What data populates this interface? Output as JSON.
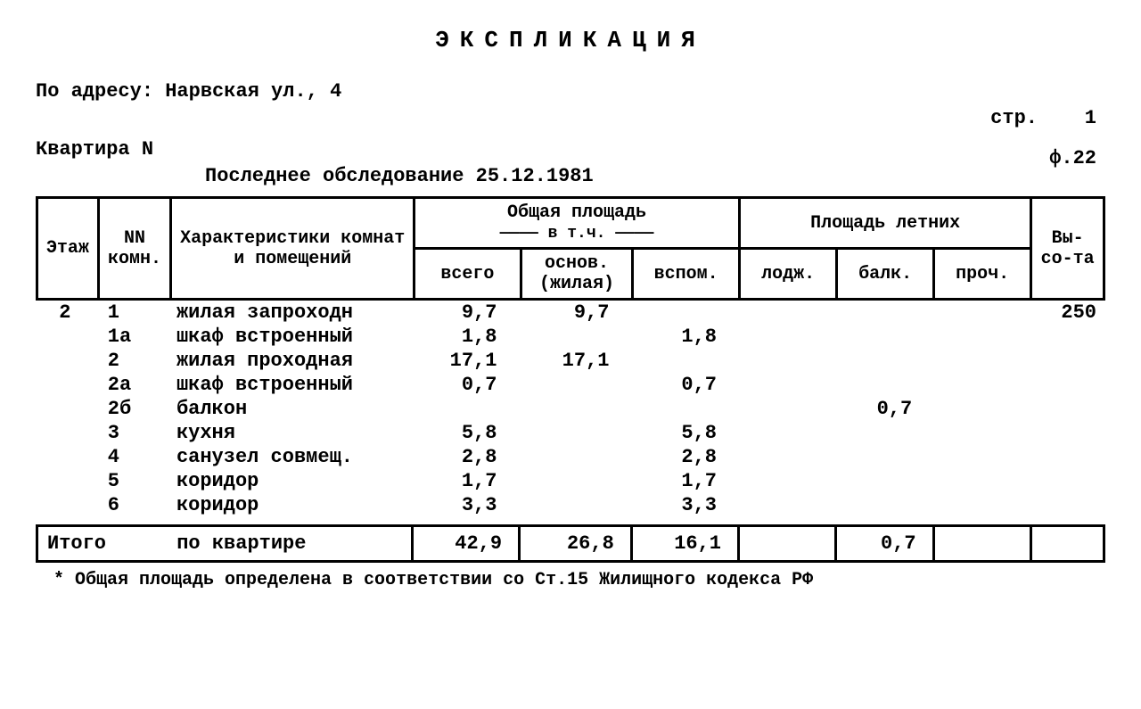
{
  "title": "ЭКСПЛИКАЦИЯ",
  "address_label": "По адресу:",
  "address_value": "Нарвская ул., 4",
  "page_label": "стр.",
  "page_value": "1",
  "apartment_label": "Квартира N",
  "form_label": "ф.22",
  "last_inspection_label": "Последнее обследование",
  "last_inspection_date": "25.12.1981",
  "headers": {
    "floor": "Этаж",
    "room_nn": "NN комн.",
    "characteristics": "Характеристики комнат и помещений",
    "total_area": "Общая площадь",
    "including": "в т.ч.",
    "total": "всего",
    "main": "основ. (жилая)",
    "aux": "вспом.",
    "summer_area": "Площадь летних",
    "loggia": "лодж.",
    "balcony": "балк.",
    "other": "проч.",
    "height": "Вы-со-та"
  },
  "rows": [
    {
      "floor": "2",
      "room": "1",
      "char": "жилая запроходн",
      "total": "9,7",
      "main": "9,7",
      "aux": "",
      "lod": "",
      "balk": "",
      "other": "",
      "height": "250"
    },
    {
      "floor": "",
      "room": "1а",
      "char": "шкаф встроенный",
      "total": "1,8",
      "main": "",
      "aux": "1,8",
      "lod": "",
      "balk": "",
      "other": "",
      "height": ""
    },
    {
      "floor": "",
      "room": "2",
      "char": "жилая проходная",
      "total": "17,1",
      "main": "17,1",
      "aux": "",
      "lod": "",
      "balk": "",
      "other": "",
      "height": ""
    },
    {
      "floor": "",
      "room": "2а",
      "char": "шкаф встроенный",
      "total": "0,7",
      "main": "",
      "aux": "0,7",
      "lod": "",
      "balk": "",
      "other": "",
      "height": ""
    },
    {
      "floor": "",
      "room": "2б",
      "char": "балкон",
      "total": "",
      "main": "",
      "aux": "",
      "lod": "",
      "balk": "0,7",
      "other": "",
      "height": ""
    },
    {
      "floor": "",
      "room": "3",
      "char": "кухня",
      "total": "5,8",
      "main": "",
      "aux": "5,8",
      "lod": "",
      "balk": "",
      "other": "",
      "height": ""
    },
    {
      "floor": "",
      "room": "4",
      "char": "санузел совмещ.",
      "total": "2,8",
      "main": "",
      "aux": "2,8",
      "lod": "",
      "balk": "",
      "other": "",
      "height": ""
    },
    {
      "floor": "",
      "room": "5",
      "char": "коридор",
      "total": "1,7",
      "main": "",
      "aux": "1,7",
      "lod": "",
      "balk": "",
      "other": "",
      "height": ""
    },
    {
      "floor": "",
      "room": "6",
      "char": "коридор",
      "total": "3,3",
      "main": "",
      "aux": "3,3",
      "lod": "",
      "balk": "",
      "other": "",
      "height": ""
    }
  ],
  "totals": {
    "label": "Итого",
    "sublabel": "по квартире",
    "total": "42,9",
    "main": "26,8",
    "aux": "16,1",
    "lod": "",
    "balk": "0,7",
    "other": "",
    "height": ""
  },
  "footnote": "* Общая площадь определена в соответствии со Ст.15 Жилищного кодекса РФ"
}
